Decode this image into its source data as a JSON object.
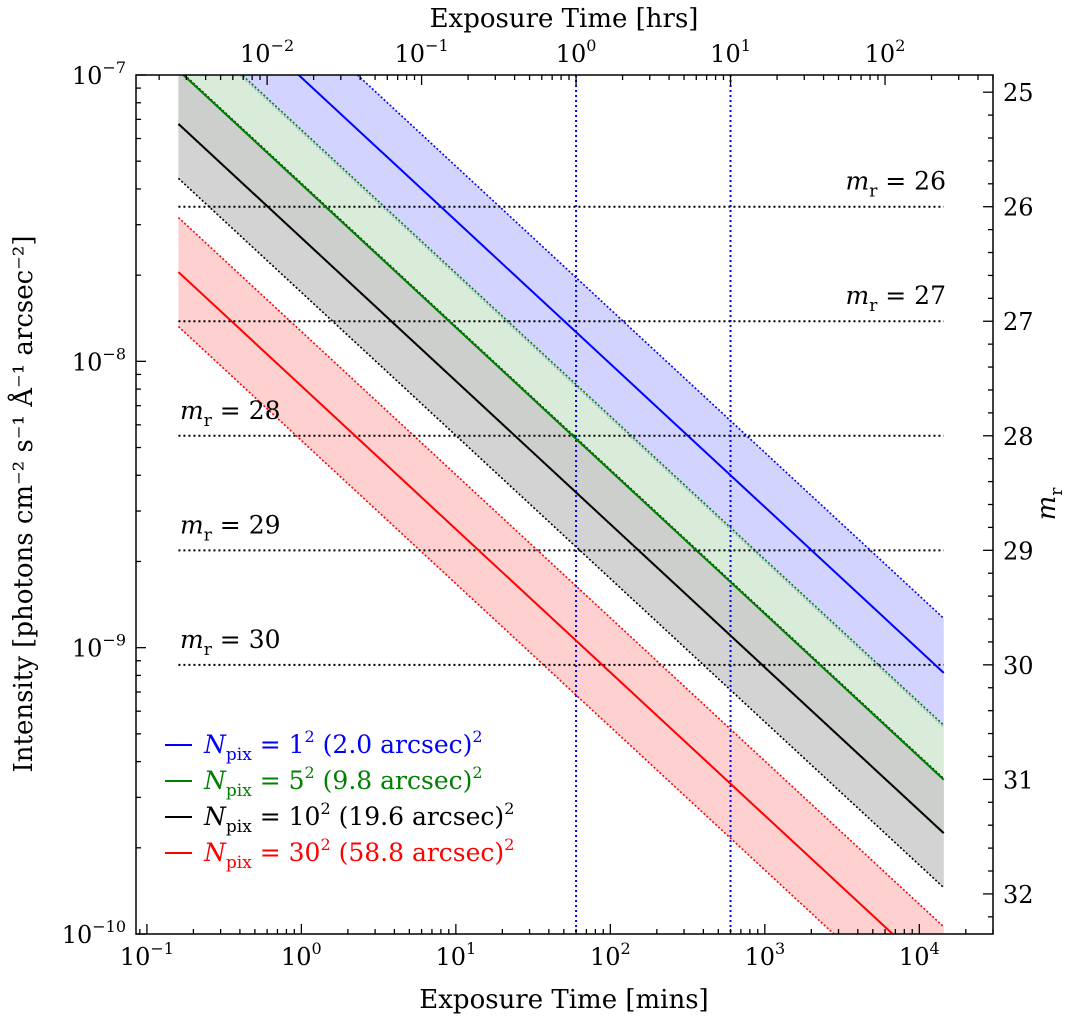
{
  "chart_data": {
    "type": "line",
    "xscale": "log",
    "yscale": "log",
    "xlabel": "Exposure Time [mins]",
    "x2label": "Exposure Time [hrs]",
    "ylabel": "Intensity [photons cm⁻² s⁻¹ Å⁻¹ arcsec⁻²]",
    "y2label": "m_r",
    "xlim": [
      0.085,
      30000
    ],
    "ylim": [
      1e-10,
      1e-07
    ],
    "y2lim": [
      24.85,
      32.35
    ],
    "x_ticks": [
      {
        "v": 0.1,
        "base": "10",
        "exp": "−1"
      },
      {
        "v": 1,
        "base": "10",
        "exp": "0"
      },
      {
        "v": 10,
        "base": "10",
        "exp": "1"
      },
      {
        "v": 100,
        "base": "10",
        "exp": "2"
      },
      {
        "v": 1000,
        "base": "10",
        "exp": "3"
      },
      {
        "v": 10000,
        "base": "10",
        "exp": "4"
      }
    ],
    "x2_ticks": [
      {
        "v": 0.01,
        "base": "10",
        "exp": "−2"
      },
      {
        "v": 0.1,
        "base": "10",
        "exp": "−1"
      },
      {
        "v": 1,
        "base": "10",
        "exp": "0"
      },
      {
        "v": 10,
        "base": "10",
        "exp": "1"
      },
      {
        "v": 100,
        "base": "10",
        "exp": "2"
      }
    ],
    "y_ticks": [
      {
        "v": 1e-07,
        "base": "10",
        "exp": "−7"
      },
      {
        "v": 1e-08,
        "base": "10",
        "exp": "−8"
      },
      {
        "v": 1e-09,
        "base": "10",
        "exp": "−9"
      },
      {
        "v": 1e-10,
        "base": "10",
        "exp": "−10"
      }
    ],
    "y2_ticks": [
      "25",
      "26",
      "27",
      "28",
      "29",
      "30",
      "31",
      "32"
    ],
    "x_range": [
      0.16,
      14400
    ],
    "series": [
      {
        "name": "N_pix = 1^2 (2.0 arcsec)^2",
        "color": "#0000ff",
        "fill": "#c8c8ff",
        "y_at_1min": 9.8e-08,
        "band_factor": 1.55
      },
      {
        "name": "N_pix = 5^2 (9.8 arcsec)^2",
        "color": "#008000",
        "fill": "#cfe6cf",
        "y_at_1min": 4.15e-08,
        "band_factor": 1.55
      },
      {
        "name": "N_pix = 10^2 (19.6 arcsec)^2",
        "color": "#000000",
        "fill": "#c8c8c8",
        "y_at_1min": 2.7e-08,
        "band_factor": 1.55
      },
      {
        "name": "N_pix = 30^2 (58.8 arcsec)^2",
        "color": "#ff0000",
        "fill": "#ffc4c4",
        "y_at_1min": 8.2e-09,
        "band_factor": 1.55
      }
    ],
    "mag_lines": [
      {
        "m": 26,
        "label_name": "m",
        "label_sub": "r",
        "label_value": "= 26",
        "label_pos": "right"
      },
      {
        "m": 27,
        "label_name": "m",
        "label_sub": "r",
        "label_value": "= 27",
        "label_pos": "right"
      },
      {
        "m": 28,
        "label_name": "m",
        "label_sub": "r",
        "label_value": "= 28",
        "label_pos": "left"
      },
      {
        "m": 29,
        "label_name": "m",
        "label_sub": "r",
        "label_value": "= 29",
        "label_pos": "left"
      },
      {
        "m": 30,
        "label_name": "m",
        "label_sub": "r",
        "label_value": "= 30",
        "label_pos": "left"
      }
    ],
    "vlines_min": [
      60,
      600
    ],
    "vline_color": "#0000ff",
    "legend_position": "lower-left",
    "legend": [
      {
        "color": "#0000ff",
        "sym": "N",
        "sub": "pix",
        "eq": "= 1",
        "sup": "2",
        "rest": "(2.0 arcsec)",
        "rsup": "2"
      },
      {
        "color": "#008000",
        "sym": "N",
        "sub": "pix",
        "eq": "= 5",
        "sup": "2",
        "rest": "(9.8 arcsec)",
        "rsup": "2"
      },
      {
        "color": "#000000",
        "sym": "N",
        "sub": "pix",
        "eq": "= 10",
        "sup": "2",
        "rest": "(19.6 arcsec)",
        "rsup": "2"
      },
      {
        "color": "#ff0000",
        "sym": "N",
        "sub": "pix",
        "eq": "= 30",
        "sup": "2",
        "rest": "(58.8 arcsec)",
        "rsup": "2"
      }
    ]
  }
}
